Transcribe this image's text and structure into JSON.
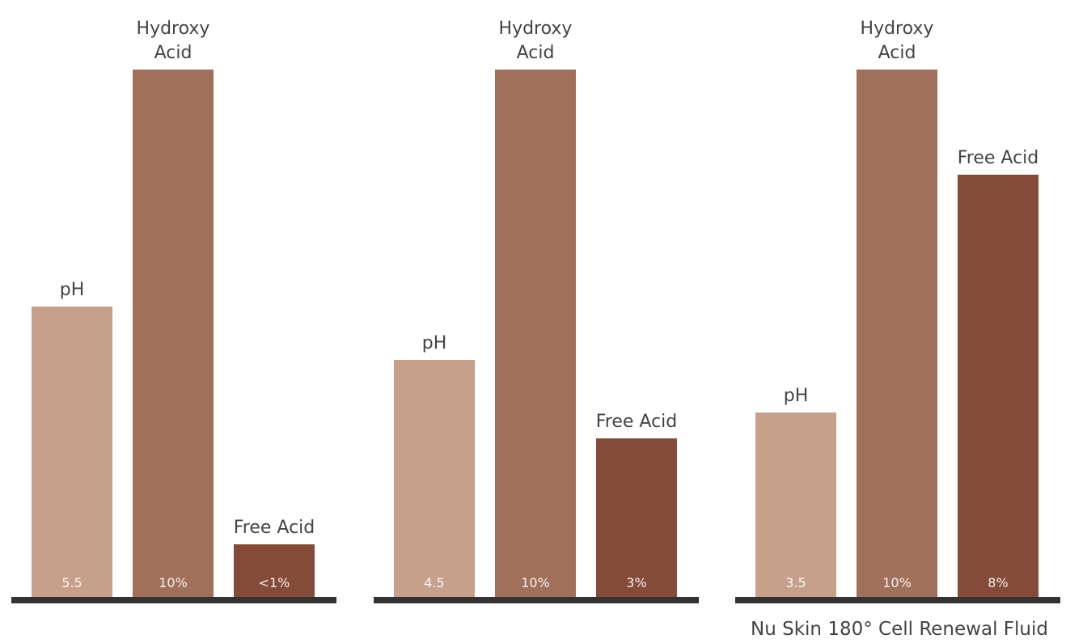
{
  "chart_data": [
    {
      "type": "bar",
      "title": "",
      "caption": "",
      "bars": [
        {
          "label_lines": [
            "pH"
          ],
          "value": 5.5,
          "value_label": "5.5",
          "color": "#c7a08c"
        },
        {
          "label_lines": [
            "Hydroxy",
            "Acid"
          ],
          "value": 10,
          "value_label": "10%",
          "color": "#a0705a"
        },
        {
          "label_lines": [
            "Free Acid"
          ],
          "value": 1,
          "value_label": "<1%",
          "color": "#854b39"
        }
      ]
    },
    {
      "type": "bar",
      "title": "",
      "caption": "",
      "bars": [
        {
          "label_lines": [
            "pH"
          ],
          "value": 4.5,
          "value_label": "4.5",
          "color": "#c7a08c"
        },
        {
          "label_lines": [
            "Hydroxy",
            "Acid"
          ],
          "value": 10,
          "value_label": "10%",
          "color": "#a0705a"
        },
        {
          "label_lines": [
            "Free Acid"
          ],
          "value": 3,
          "value_label": "3%",
          "color": "#854b39"
        }
      ]
    },
    {
      "type": "bar",
      "title": "",
      "caption": "Nu Skin 180° Cell Renewal Fluid",
      "bars": [
        {
          "label_lines": [
            "pH"
          ],
          "value": 3.5,
          "value_label": "3.5",
          "color": "#c7a08c"
        },
        {
          "label_lines": [
            "Hydroxy",
            "Acid"
          ],
          "value": 10,
          "value_label": "10%",
          "color": "#a0705a"
        },
        {
          "label_lines": [
            "Free Acid"
          ],
          "value": 8,
          "value_label": "8%",
          "color": "#854b39"
        }
      ]
    }
  ],
  "colors": {
    "baseline": "#333333",
    "label_text": "#444444",
    "value_text": "#ffffff"
  }
}
